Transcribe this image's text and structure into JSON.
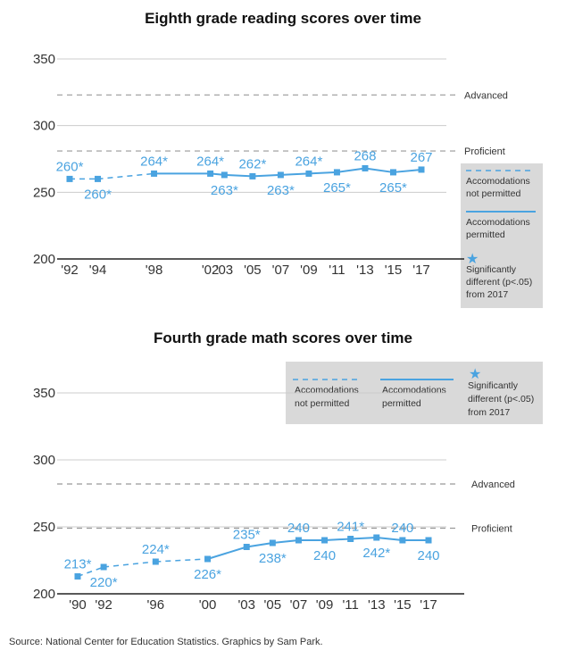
{
  "colors": {
    "line": "#4aa3e0",
    "grid": "#cccccc",
    "ref_line": "#999999",
    "legend_bg": "#d9d9d9",
    "text": "#333333"
  },
  "chart_data": [
    {
      "type": "line",
      "title": "Eighth grade reading scores over time",
      "ylim": [
        200,
        350
      ],
      "yticks": [
        "350",
        "300",
        "250",
        "200"
      ],
      "xlabels": [
        "'92",
        "'94",
        "'98",
        "'02",
        "'03",
        "'05",
        "'07",
        "'09",
        "'11",
        "'13",
        "'15",
        "'17"
      ],
      "x": [
        1992,
        1994,
        1998,
        2002,
        2003,
        2005,
        2007,
        2009,
        2011,
        2013,
        2015,
        2017
      ],
      "values": [
        260,
        260,
        264,
        264,
        263,
        262,
        263,
        264,
        265,
        268,
        265,
        267
      ],
      "labels": [
        "260*",
        "260*",
        "264*",
        "264*",
        "263*",
        "262*",
        "263*",
        "264*",
        "265*",
        "268",
        "265*",
        "267"
      ],
      "accommodations_permitted_from": 1998,
      "reference_lines": [
        {
          "label": "Advanced",
          "value": 323
        },
        {
          "label": "Proficient",
          "value": 281
        }
      ],
      "legend": {
        "not_permitted": "Accomodations not permitted",
        "permitted": "Accomodations permitted",
        "sig_line1": "Significantly",
        "sig_line2": "different (p<.05)",
        "sig_line3": "from 2017",
        "star": "★"
      }
    },
    {
      "type": "line",
      "title": "Fourth grade math scores over time",
      "ylim": [
        200,
        370
      ],
      "yticks": [
        "350",
        "300",
        "250",
        "200"
      ],
      "xlabels": [
        "'90",
        "'92",
        "'96",
        "'00",
        "'03",
        "'05",
        "'07",
        "'09",
        "'11",
        "'13",
        "'15",
        "'17"
      ],
      "x": [
        1990,
        1992,
        1996,
        2000,
        2003,
        2005,
        2007,
        2009,
        2011,
        2013,
        2015,
        2017
      ],
      "values": [
        213,
        220,
        224,
        226,
        235,
        238,
        240,
        240,
        241,
        242,
        240,
        240
      ],
      "labels": [
        "213*",
        "220*",
        "224*",
        "226*",
        "235*",
        "238*",
        "240",
        "240",
        "241*",
        "242*",
        "240",
        "240"
      ],
      "accommodations_permitted_from": 2000,
      "reference_lines": [
        {
          "label": "Advanced",
          "value": 282
        },
        {
          "label": "Proficient",
          "value": 249
        }
      ],
      "legend": {
        "not_permitted": "Accomodations not permitted",
        "permitted": "Accomodations permitted",
        "sig_line1": "Significantly",
        "sig_line2": "different (p<.05)",
        "sig_line3": "from 2017",
        "star": "★"
      }
    }
  ],
  "source": "Source: National Center for Education Statistics. Graphics by Sam Park."
}
